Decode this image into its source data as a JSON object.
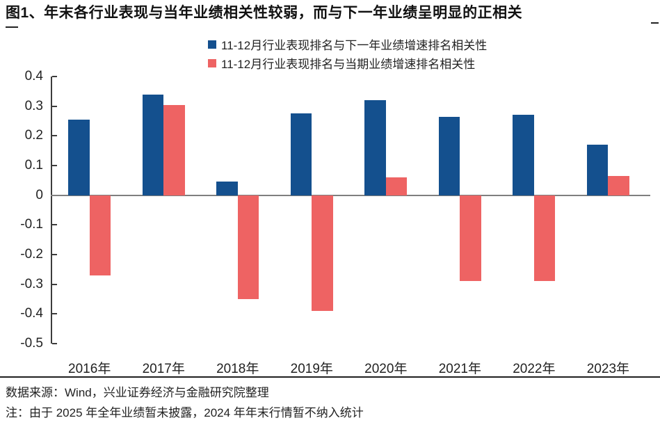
{
  "page": {
    "title": "图1、年末各行业表现与当年业绩相关性较弱，而与下一年业绩呈明显的正相关",
    "source_line": "数据来源：Wind，兴业证券经济与金融研究院整理",
    "note_line": "注：由于 2025 年全年业绩暂未披露，2024 年年末行情暂不纳入统计"
  },
  "colors": {
    "series_next_year": "#14508e",
    "series_current": "#ee6363",
    "zero_line": "#7f7f7f",
    "axis": "#3c3c3c"
  },
  "chart_data": {
    "type": "bar",
    "categories": [
      "2016年",
      "2017年",
      "2018年",
      "2019年",
      "2020年",
      "2021年",
      "2022年",
      "2023年"
    ],
    "series": [
      {
        "name": "11-12月行业表现排名与下一年业绩增速排名相关性",
        "color": "#14508e",
        "values": [
          0.255,
          0.34,
          0.045,
          0.275,
          0.32,
          0.265,
          0.27,
          0.17
        ]
      },
      {
        "name": "11-12月行业表现排名与当期业绩增速排名相关性",
        "color": "#ee6363",
        "values": [
          -0.27,
          0.305,
          -0.35,
          -0.39,
          0.06,
          -0.29,
          -0.29,
          0.065
        ]
      }
    ],
    "title": "",
    "xlabel": "",
    "ylabel": "",
    "ylim": [
      -0.5,
      0.4
    ],
    "ytick_step": 0.1,
    "legend_position": "top",
    "grid": false
  }
}
